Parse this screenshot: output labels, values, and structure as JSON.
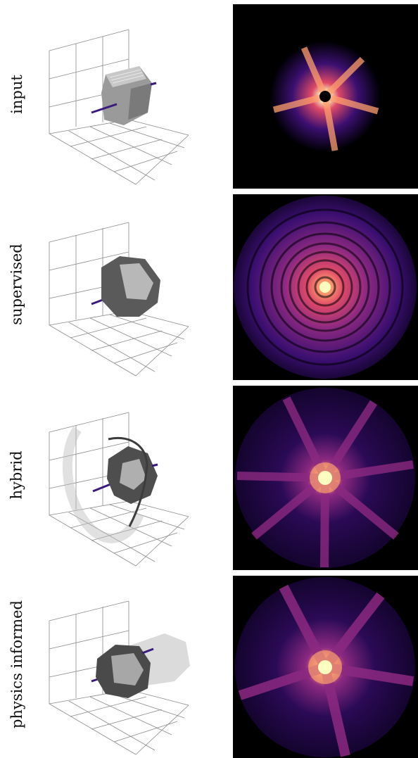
{
  "rows": [
    {
      "label": "input"
    },
    {
      "label": "supervised"
    },
    {
      "label": "hybrid"
    },
    {
      "label": "physics informed"
    }
  ],
  "colors": {
    "beam": "#3a1a7a",
    "grid": "#8a8a8a",
    "diffraction_bg": "#000000",
    "colormap": [
      "#000004",
      "#3b0f70",
      "#8c2981",
      "#de4968",
      "#fe9f6d",
      "#fcfdbf"
    ]
  }
}
